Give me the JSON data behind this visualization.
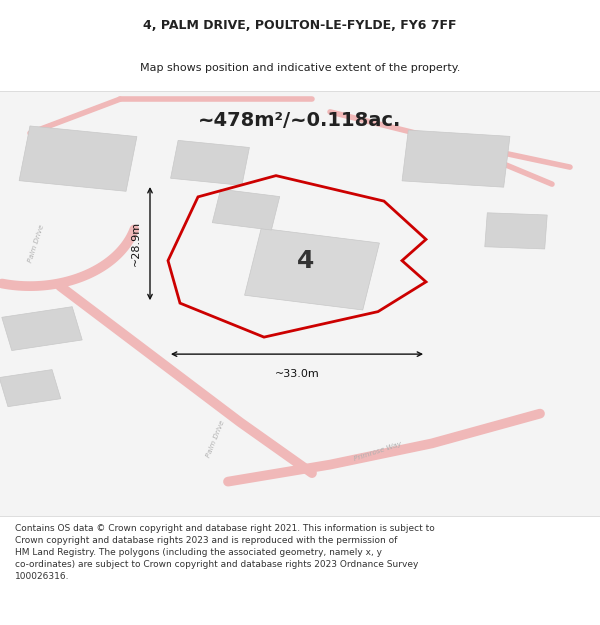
{
  "title_line1": "4, PALM DRIVE, POULTON-LE-FYLDE, FY6 7FF",
  "title_line2": "Map shows position and indicative extent of the property.",
  "area_text": "~478m²/~0.118ac.",
  "dim_width": "~33.0m",
  "dim_height": "~28.9m",
  "label_number": "4",
  "footer_text": "Contains OS data © Crown copyright and database right 2021. This information is subject to Crown copyright and database rights 2023 and is reproduced with the permission of HM Land Registry. The polygons (including the associated geometry, namely x, y co-ordinates) are subject to Crown copyright and database rights 2023 Ordnance Survey 100026316.",
  "map_bg": "#efefef",
  "road_color": "#f0b8b8",
  "building_color": "#d8d8d8",
  "building_outline": "#cccccc",
  "property_outline": "#cc0000",
  "dim_line_color": "#111111",
  "text_color": "#222222",
  "footer_color": "#333333",
  "title_fontsize": 9,
  "subtitle_fontsize": 8,
  "area_fontsize": 14,
  "dim_fontsize": 8,
  "number_fontsize": 18,
  "footer_fontsize": 6.5
}
